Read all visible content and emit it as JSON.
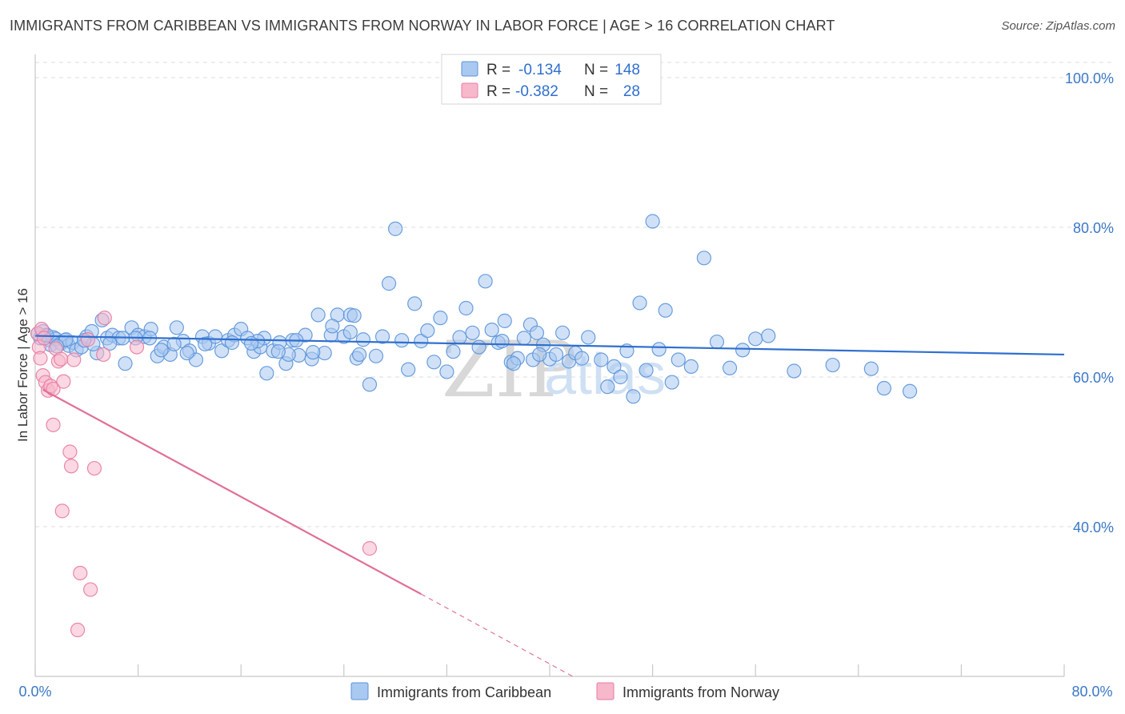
{
  "title": "IMMIGRANTS FROM CARIBBEAN VS IMMIGRANTS FROM NORWAY IN LABOR FORCE | AGE > 16 CORRELATION CHART",
  "source": "Source: ZipAtlas.com",
  "watermark": {
    "part1": "ZIP",
    "part2": "atlas"
  },
  "legend": {
    "r_label": "R =",
    "n_label": "N =",
    "rows": [
      {
        "r": "-0.134",
        "n": "148",
        "color": "#a9c9f1"
      },
      {
        "r": "-0.382",
        "n": "28",
        "color": "#f7b8cc"
      }
    ]
  },
  "bottom_legend": [
    {
      "label": "Immigrants from Caribbean",
      "color": "#a9c9f1"
    },
    {
      "label": "Immigrants from Norway",
      "color": "#f7b8cc"
    }
  ],
  "chart_data": {
    "type": "scatter",
    "title": "IMMIGRANTS FROM CARIBBEAN VS IMMIGRANTS FROM NORWAY IN LABOR FORCE | AGE > 16 CORRELATION CHART",
    "xlabel": "",
    "ylabel": "In Labor Force | Age > 16",
    "xlim": [
      0,
      80
    ],
    "ylim": [
      20,
      103
    ],
    "x_tick_labels": [
      "0.0%",
      "80.0%"
    ],
    "y_ticks": [
      40,
      60,
      80,
      100
    ],
    "y_tick_labels": [
      "40.0%",
      "60.0%",
      "80.0%",
      "100.0%"
    ],
    "grid": true,
    "legend_position": "top-center",
    "colors": {
      "caribbean": "#5b93d9",
      "caribbean_fill": "#a9c9f1",
      "norway": "#e87ba0",
      "norway_fill": "#f7b8cc",
      "caribbean_line": "#2f6fcf",
      "norway_line": "#e06f99"
    },
    "series": [
      {
        "name": "Immigrants from Caribbean",
        "trend": {
          "x": [
            0,
            80
          ],
          "y": [
            65.5,
            63.0
          ]
        },
        "points": [
          [
            0.2,
            65.8
          ],
          [
            0.4,
            65.2
          ],
          [
            0.6,
            66.1
          ],
          [
            0.8,
            65.5
          ],
          [
            1.0,
            65.0
          ],
          [
            1.2,
            64.3
          ],
          [
            1.4,
            65.3
          ],
          [
            1.6,
            65.1
          ],
          [
            2.0,
            64.5
          ],
          [
            2.3,
            64.9
          ],
          [
            2.6,
            64.2
          ],
          [
            2.9,
            64.6
          ],
          [
            3.2,
            63.6
          ],
          [
            3.6,
            64.0
          ],
          [
            4.0,
            65.4
          ],
          [
            4.4,
            66.1
          ],
          [
            4.8,
            63.2
          ],
          [
            5.2,
            67.6
          ],
          [
            5.6,
            65.2
          ],
          [
            6.0,
            65.6
          ],
          [
            6.5,
            65.2
          ],
          [
            7.0,
            61.8
          ],
          [
            7.5,
            66.6
          ],
          [
            8.0,
            65.6
          ],
          [
            8.5,
            65.4
          ],
          [
            9.0,
            66.4
          ],
          [
            9.5,
            62.8
          ],
          [
            10.0,
            64.0
          ],
          [
            10.5,
            63.0
          ],
          [
            11.0,
            66.6
          ],
          [
            11.5,
            64.8
          ],
          [
            12.0,
            63.5
          ],
          [
            12.5,
            62.3
          ],
          [
            13.0,
            65.4
          ],
          [
            13.5,
            64.5
          ],
          [
            14.0,
            65.4
          ],
          [
            14.5,
            63.5
          ],
          [
            15.0,
            64.9
          ],
          [
            15.5,
            65.6
          ],
          [
            16.0,
            66.4
          ],
          [
            16.5,
            65.2
          ],
          [
            17.0,
            63.4
          ],
          [
            17.5,
            64.0
          ],
          [
            18.0,
            60.5
          ],
          [
            18.5,
            63.5
          ],
          [
            19.0,
            64.6
          ],
          [
            19.5,
            61.8
          ],
          [
            20.0,
            64.9
          ],
          [
            20.5,
            62.9
          ],
          [
            21.0,
            65.6
          ],
          [
            21.5,
            62.4
          ],
          [
            22.0,
            68.3
          ],
          [
            22.5,
            63.2
          ],
          [
            23.0,
            65.6
          ],
          [
            23.5,
            68.3
          ],
          [
            24.0,
            65.4
          ],
          [
            24.5,
            66.0
          ],
          [
            25.0,
            62.5
          ],
          [
            25.5,
            65.0
          ],
          [
            26.0,
            59.0
          ],
          [
            26.5,
            62.8
          ],
          [
            27.0,
            65.4
          ],
          [
            27.5,
            72.5
          ],
          [
            28.0,
            79.8
          ],
          [
            28.5,
            64.9
          ],
          [
            29.0,
            61.0
          ],
          [
            29.5,
            69.8
          ],
          [
            30.0,
            64.8
          ],
          [
            30.5,
            66.2
          ],
          [
            31.0,
            62.0
          ],
          [
            31.5,
            67.9
          ],
          [
            32.0,
            60.7
          ],
          [
            32.5,
            63.4
          ],
          [
            33.0,
            65.3
          ],
          [
            33.5,
            69.2
          ],
          [
            34.0,
            65.9
          ],
          [
            34.5,
            64.0
          ],
          [
            35.0,
            72.8
          ],
          [
            35.5,
            66.3
          ],
          [
            36.0,
            64.6
          ],
          [
            36.5,
            67.5
          ],
          [
            37.0,
            62.0
          ],
          [
            37.5,
            62.5
          ],
          [
            38.0,
            65.2
          ],
          [
            38.5,
            67.0
          ],
          [
            39.0,
            65.9
          ],
          [
            39.5,
            64.3
          ],
          [
            40.0,
            62.4
          ],
          [
            40.5,
            63.0
          ],
          [
            41.0,
            65.9
          ],
          [
            41.5,
            62.1
          ],
          [
            42.0,
            63.2
          ],
          [
            42.5,
            62.5
          ],
          [
            43.0,
            65.3
          ],
          [
            44.0,
            62.3
          ],
          [
            44.5,
            58.7
          ],
          [
            45.0,
            61.4
          ],
          [
            45.5,
            60.0
          ],
          [
            46.0,
            63.5
          ],
          [
            46.5,
            57.4
          ],
          [
            47.0,
            69.9
          ],
          [
            47.5,
            60.9
          ],
          [
            48.0,
            80.8
          ],
          [
            48.5,
            63.7
          ],
          [
            49.0,
            68.9
          ],
          [
            49.5,
            59.3
          ],
          [
            50.0,
            62.3
          ],
          [
            51.0,
            61.4
          ],
          [
            52.0,
            75.9
          ],
          [
            53.0,
            64.7
          ],
          [
            54.0,
            61.2
          ],
          [
            55.0,
            63.6
          ],
          [
            56.0,
            65.1
          ],
          [
            57.0,
            65.5
          ],
          [
            59.0,
            60.8
          ],
          [
            62.0,
            61.6
          ],
          [
            65.0,
            61.1
          ],
          [
            66.0,
            58.5
          ],
          [
            68.0,
            58.1
          ],
          [
            38.7,
            62.3
          ],
          [
            39.2,
            63.0
          ],
          [
            37.2,
            61.8
          ],
          [
            36.3,
            64.8
          ],
          [
            25.2,
            63.0
          ],
          [
            24.5,
            68.3
          ],
          [
            24.8,
            68.2
          ],
          [
            23.1,
            66.8
          ],
          [
            21.6,
            63.3
          ],
          [
            20.3,
            64.9
          ],
          [
            19.7,
            63.0
          ],
          [
            18.9,
            63.4
          ],
          [
            17.8,
            65.2
          ],
          [
            17.3,
            64.8
          ],
          [
            16.8,
            64.5
          ],
          [
            15.3,
            64.6
          ],
          [
            13.2,
            64.4
          ],
          [
            11.8,
            63.2
          ],
          [
            10.8,
            64.4
          ],
          [
            9.8,
            63.6
          ],
          [
            8.9,
            65.2
          ],
          [
            7.8,
            65.2
          ],
          [
            6.8,
            65.2
          ],
          [
            5.8,
            64.5
          ],
          [
            4.5,
            64.4
          ],
          [
            3.8,
            64.9
          ],
          [
            2.4,
            65.0
          ],
          [
            1.7,
            64.1
          ],
          [
            0.9,
            65.6
          ]
        ]
      },
      {
        "name": "Immigrants from Norway",
        "trend": {
          "x": [
            0.6,
            30.0
          ],
          "y": [
            58.3,
            31.0
          ]
        },
        "trend_dashed": {
          "x": [
            30.0,
            42.0
          ],
          "y": [
            31.0,
            19.8
          ]
        },
        "points": [
          [
            0.2,
            65.8
          ],
          [
            0.3,
            64.0
          ],
          [
            0.5,
            66.4
          ],
          [
            0.7,
            65.2
          ],
          [
            0.4,
            62.5
          ],
          [
            0.6,
            60.2
          ],
          [
            0.8,
            59.3
          ],
          [
            1.0,
            58.2
          ],
          [
            1.2,
            58.8
          ],
          [
            1.4,
            58.4
          ],
          [
            1.6,
            63.8
          ],
          [
            1.8,
            62.1
          ],
          [
            2.0,
            62.4
          ],
          [
            2.2,
            59.4
          ],
          [
            1.4,
            53.6
          ],
          [
            2.7,
            50.0
          ],
          [
            2.8,
            48.1
          ],
          [
            4.6,
            47.8
          ],
          [
            2.1,
            42.1
          ],
          [
            3.5,
            33.8
          ],
          [
            4.3,
            31.6
          ],
          [
            3.3,
            26.2
          ],
          [
            5.4,
            67.9
          ],
          [
            5.3,
            63.0
          ],
          [
            7.9,
            64.0
          ],
          [
            4.1,
            65.0
          ],
          [
            26.0,
            37.1
          ],
          [
            3.0,
            62.3
          ]
        ]
      }
    ]
  }
}
